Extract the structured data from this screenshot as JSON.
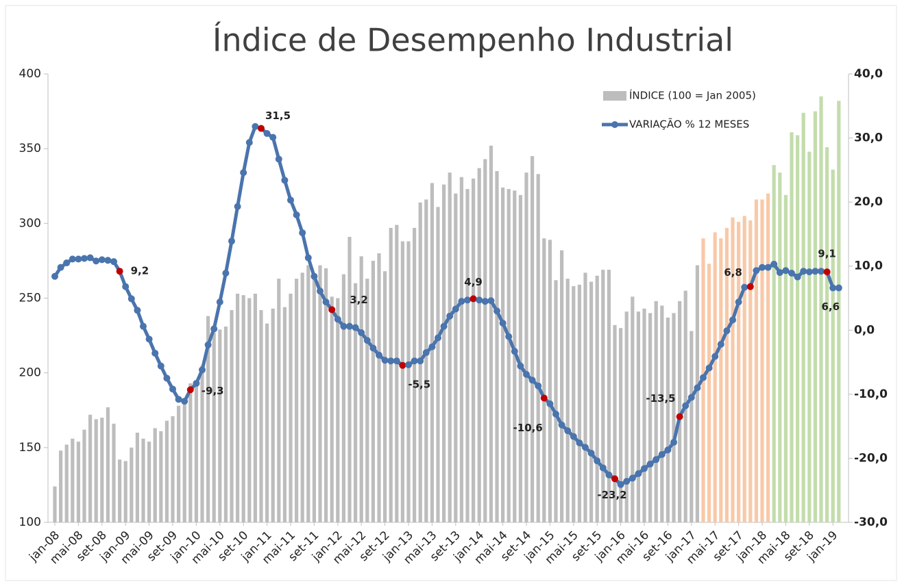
{
  "chart_data": {
    "type": "bar_line",
    "title": "Índice de Desempenho  Industrial",
    "categories": [
      "jan-08",
      null,
      null,
      null,
      "mai-08",
      null,
      null,
      null,
      "set-08",
      null,
      null,
      null,
      "jan-09",
      null,
      null,
      null,
      "mai-09",
      null,
      null,
      null,
      "set-09",
      null,
      null,
      null,
      "jan-10",
      null,
      null,
      null,
      "mai-10",
      null,
      null,
      null,
      "set-10",
      null,
      null,
      null,
      "jan-11",
      null,
      null,
      null,
      "mai-11",
      null,
      null,
      null,
      "set-11",
      null,
      null,
      null,
      "jan-12",
      null,
      null,
      null,
      "mai-12",
      null,
      null,
      null,
      "set-12",
      null,
      null,
      null,
      "jan-13",
      null,
      null,
      null,
      "mai-13",
      null,
      null,
      null,
      "set-13",
      null,
      null,
      null,
      "jan-14",
      null,
      null,
      null,
      "mai-14",
      null,
      null,
      null,
      "set-14",
      null,
      null,
      null,
      "jan-15",
      null,
      null,
      null,
      "mai-15",
      null,
      null,
      null,
      "set-15",
      null,
      null,
      null,
      "jan-16",
      null,
      null,
      null,
      "mai-16",
      null,
      null,
      null,
      "set-16",
      null,
      null,
      null,
      "jan-17",
      null,
      null,
      null,
      "mai-17",
      null,
      null,
      null,
      "set-17",
      null,
      null,
      null,
      "jan-18",
      null,
      null,
      null,
      "mai-18",
      null,
      null,
      null,
      "set-18",
      null,
      null,
      null,
      "jan-19",
      null
    ],
    "series": [
      {
        "name": "ÍNDICE (100 = Jan 2005)",
        "type": "bar",
        "color": "#bdbdbd",
        "color_ranges": [
          {
            "from": 110,
            "color": "#f8c9a8"
          },
          {
            "from": 122,
            "color": "#c3dcac"
          }
        ],
        "values": [
          124,
          148,
          152,
          156,
          154,
          162,
          172,
          169,
          170,
          177,
          166,
          142,
          141,
          150,
          160,
          156,
          154,
          163,
          161,
          168,
          171,
          178,
          183,
          193,
          193,
          205,
          238,
          227,
          229,
          231,
          242,
          253,
          252,
          250,
          253,
          242,
          233,
          243,
          263,
          244,
          253,
          263,
          267,
          272,
          265,
          272,
          270,
          251,
          250,
          266,
          291,
          260,
          278,
          263,
          275,
          280,
          268,
          297,
          299,
          288,
          288,
          297,
          314,
          316,
          327,
          311,
          326,
          334,
          320,
          331,
          323,
          330,
          337,
          343,
          352,
          335,
          324,
          323,
          322,
          319,
          334,
          345,
          333,
          290,
          289,
          262,
          282,
          263,
          258,
          259,
          267,
          261,
          265,
          269,
          269,
          232,
          230,
          241,
          251,
          241,
          243,
          240,
          248,
          245,
          237,
          240,
          248,
          255,
          228,
          272,
          290,
          273,
          294,
          290,
          297,
          304,
          301,
          305,
          302,
          316,
          316,
          320,
          339,
          334,
          319,
          361,
          359,
          374,
          348,
          375,
          385,
          351,
          336,
          382
        ]
      },
      {
        "name": "VARIAÇÃO % 12 MESES",
        "type": "line",
        "axis": "y2",
        "color": "#4a74ad",
        "highlight": [
          11,
          23,
          35,
          47,
          59,
          71,
          83,
          95,
          106,
          118,
          131
        ],
        "highlight_color": "#c00000",
        "values": [
          8.4,
          9.8,
          10.5,
          11.1,
          11.1,
          11.2,
          11.3,
          10.8,
          11.0,
          10.9,
          10.7,
          9.2,
          6.8,
          4.9,
          3.1,
          0.6,
          -1.4,
          -3.6,
          -5.6,
          -7.5,
          -9.2,
          -10.8,
          -11.1,
          -9.3,
          -8.3,
          -6.2,
          -2.3,
          0.2,
          4.4,
          8.9,
          13.9,
          19.3,
          24.6,
          29.3,
          31.8,
          31.5,
          30.7,
          30.1,
          26.7,
          23.4,
          20.3,
          18.0,
          15.2,
          11.3,
          8.4,
          6.1,
          4.4,
          3.2,
          1.7,
          0.6,
          0.6,
          0.4,
          -0.4,
          -1.6,
          -2.8,
          -3.9,
          -4.7,
          -4.8,
          -4.8,
          -5.5,
          -5.4,
          -4.8,
          -4.8,
          -3.5,
          -2.6,
          -1.2,
          0.6,
          2.2,
          3.3,
          4.5,
          4.7,
          4.9,
          4.7,
          4.5,
          4.6,
          3.0,
          1.1,
          -1.0,
          -3.3,
          -5.6,
          -6.9,
          -7.8,
          -8.7,
          -10.6,
          -11.5,
          -13.1,
          -14.8,
          -15.7,
          -16.6,
          -17.6,
          -18.3,
          -19.2,
          -20.4,
          -21.5,
          -22.6,
          -23.2,
          -24.1,
          -23.6,
          -23.1,
          -22.4,
          -21.6,
          -20.9,
          -20.2,
          -19.4,
          -18.7,
          -17.5,
          -13.5,
          -11.8,
          -10.5,
          -9.0,
          -7.4,
          -5.9,
          -4.1,
          -2.2,
          -0.1,
          1.6,
          4.4,
          6.7,
          6.8,
          9.3,
          9.8,
          9.8,
          10.3,
          9.0,
          9.3,
          8.9,
          8.3,
          9.2,
          9.1,
          9.2,
          9.2,
          9.1,
          6.6,
          6.6
        ],
        "value_labels": [
          null,
          null,
          null,
          null,
          null,
          null,
          null,
          null,
          null,
          null,
          null,
          "9,2",
          null,
          null,
          null,
          null,
          null,
          null,
          null,
          null,
          null,
          null,
          null,
          "-9,3",
          null,
          null,
          null,
          null,
          null,
          null,
          null,
          null,
          null,
          null,
          null,
          "31,5",
          null,
          null,
          null,
          null,
          null,
          null,
          null,
          null,
          null,
          null,
          null,
          "3,2",
          null,
          null,
          null,
          null,
          null,
          null,
          null,
          null,
          null,
          null,
          null,
          "-5,5",
          null,
          null,
          null,
          null,
          null,
          null,
          null,
          null,
          null,
          null,
          null,
          "4,9",
          null,
          null,
          null,
          null,
          null,
          null,
          null,
          null,
          null,
          null,
          null,
          "-10,6",
          null,
          null,
          null,
          null,
          null,
          null,
          null,
          null,
          null,
          null,
          null,
          "-23,2",
          null,
          null,
          null,
          null,
          null,
          null,
          null,
          null,
          null,
          null,
          "-13,5",
          null,
          null,
          null,
          null,
          null,
          null,
          null,
          null,
          null,
          null,
          null,
          "6,8",
          null,
          null,
          null,
          null,
          null,
          null,
          null,
          null,
          null,
          null,
          null,
          null,
          "9,1",
          null,
          "6,6"
        ]
      }
    ],
    "ylim": [
      100,
      400
    ],
    "yticks": [
      100,
      150,
      200,
      250,
      300,
      350,
      400
    ],
    "y2lim": [
      -30,
      40
    ],
    "y2ticks": [
      {
        "value": -30,
        "label": "-30,0"
      },
      {
        "value": -20,
        "label": "-20,0"
      },
      {
        "value": -10,
        "label": "-10,0"
      },
      {
        "value": 0,
        "label": "0,0"
      },
      {
        "value": 10,
        "label": "10,0"
      },
      {
        "value": 20,
        "label": "20,0"
      },
      {
        "value": 30,
        "label": "30,0"
      },
      {
        "value": 40,
        "label": "40,0"
      }
    ],
    "legend": "top-right",
    "grid": false
  }
}
